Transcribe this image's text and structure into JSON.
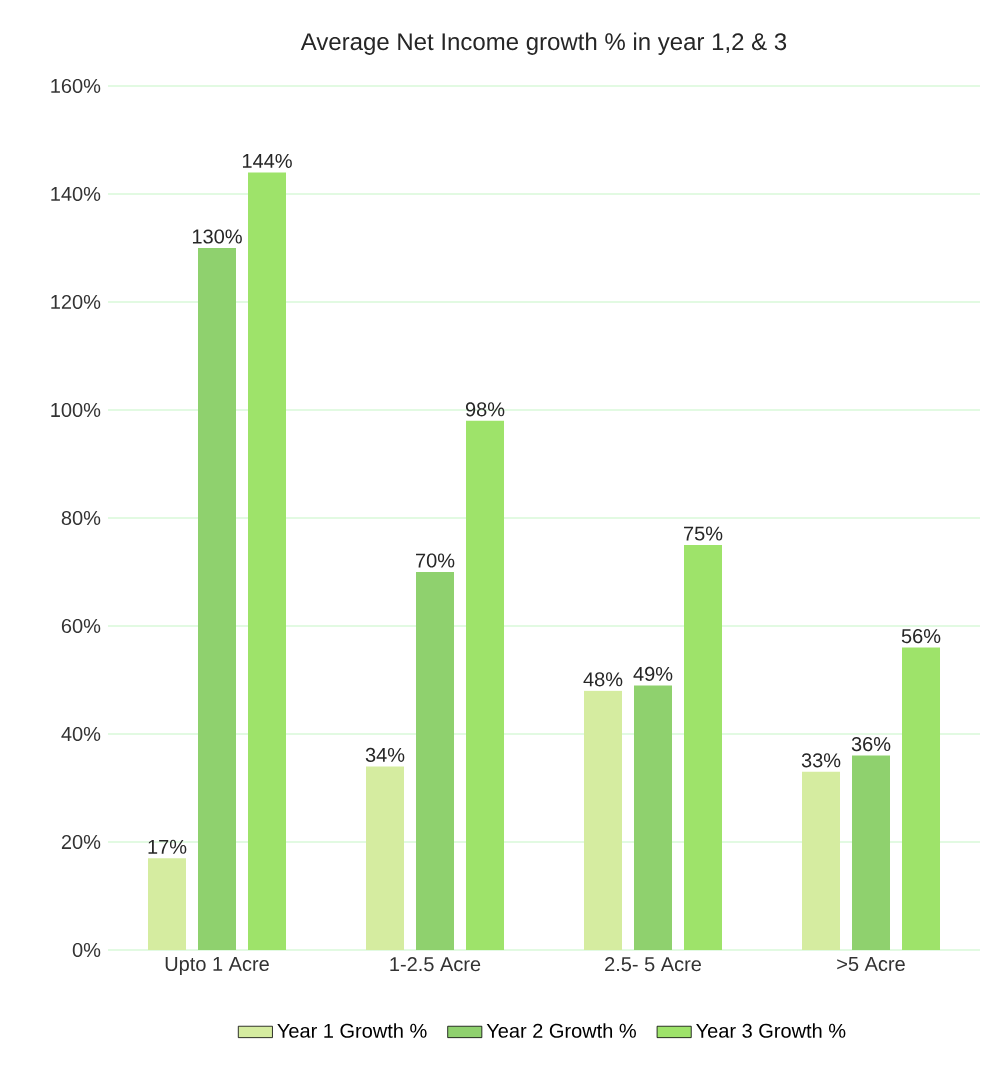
{
  "chart_data": {
    "type": "bar",
    "title": "Average Net Income growth % in year 1,2 & 3",
    "categories": [
      "Upto 1 Acre",
      "1-2.5 Acre",
      "2.5- 5 Acre",
      ">5 Acre"
    ],
    "series": [
      {
        "name": "Year 1 Growth %",
        "color": "#d5eca0",
        "values": [
          17,
          34,
          48,
          33
        ],
        "value_labels": [
          "17%",
          "34%",
          "48%",
          "33%"
        ]
      },
      {
        "name": "Year 2 Growth %",
        "color": "#8fd16e",
        "values": [
          130,
          70,
          49,
          36
        ],
        "value_labels": [
          "130%",
          "70%",
          "49%",
          "36%"
        ]
      },
      {
        "name": "Year 3 Growth %",
        "color": "#9ee36a",
        "values": [
          144,
          98,
          75,
          56
        ],
        "value_labels": [
          "144%",
          "98%",
          "75%",
          "56%"
        ]
      }
    ],
    "ylim": [
      0,
      160
    ],
    "yticks": [
      {
        "value": 0,
        "label": "0%"
      },
      {
        "value": 20,
        "label": "20%"
      },
      {
        "value": 40,
        "label": "40%"
      },
      {
        "value": 60,
        "label": "60%"
      },
      {
        "value": 80,
        "label": "80%"
      },
      {
        "value": 100,
        "label": "100%"
      },
      {
        "value": 120,
        "label": "120%"
      },
      {
        "value": 140,
        "label": "140%"
      },
      {
        "value": 160,
        "label": "160%"
      }
    ],
    "grid": "y",
    "legend": "bottom"
  }
}
